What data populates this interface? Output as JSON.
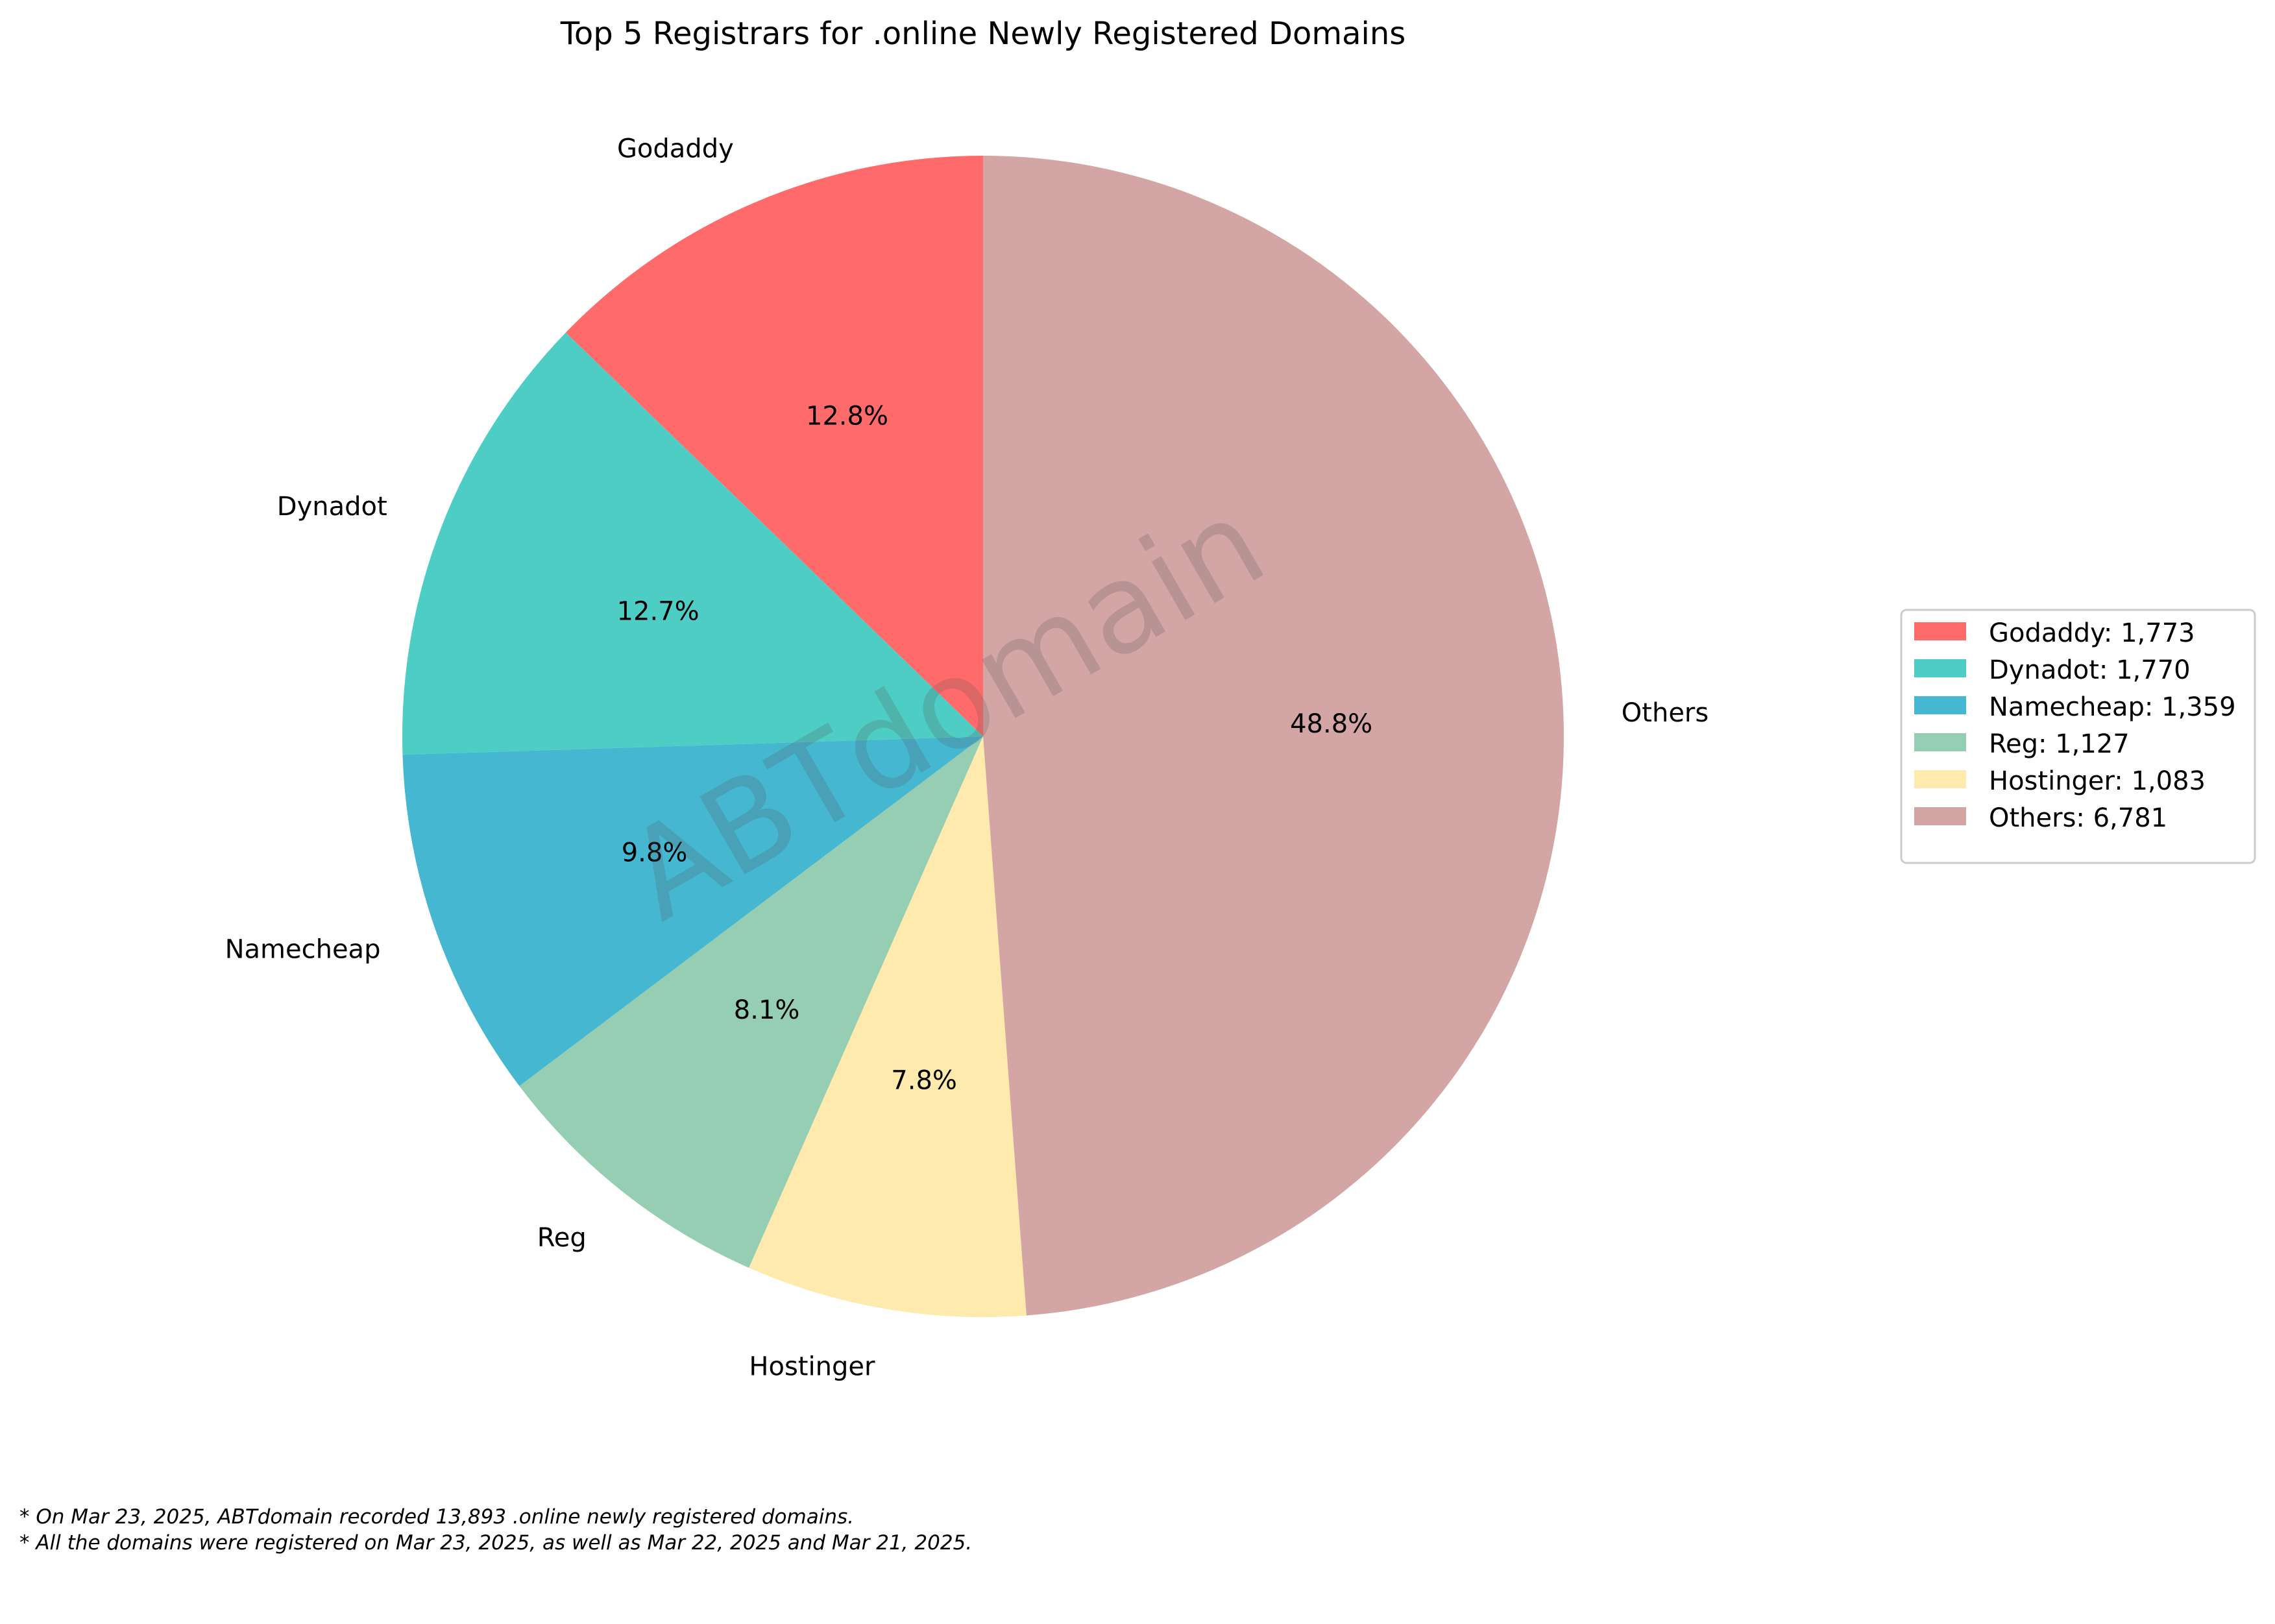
{
  "chart_data": {
    "type": "pie",
    "title": "Top 5 Registrars for .online Newly Registered Domains",
    "slices": [
      {
        "label": "Godaddy",
        "value": 1773,
        "percent_label": "12.8%",
        "legend": "Godaddy: 1,773",
        "color": "#FF6B6B"
      },
      {
        "label": "Dynadot",
        "value": 1770,
        "percent_label": "12.7%",
        "legend": "Dynadot: 1,770",
        "color": "#4ECDC4"
      },
      {
        "label": "Namecheap",
        "value": 1359,
        "percent_label": "9.8%",
        "legend": "Namecheap: 1,359",
        "color": "#45B7D1"
      },
      {
        "label": "Reg",
        "value": 1127,
        "percent_label": "8.1%",
        "legend": "Reg: 1,127",
        "color": "#96CEB4"
      },
      {
        "label": "Hostinger",
        "value": 1083,
        "percent_label": "7.8%",
        "legend": "Hostinger: 1,083",
        "color": "#FFEAAD"
      },
      {
        "label": "Others",
        "value": 6781,
        "percent_label": "48.8%",
        "legend": "Others: 6,781",
        "color": "#D4A5A5"
      }
    ],
    "start_angle_deg": 90,
    "direction": "counterclockwise",
    "legend_position": "right"
  },
  "watermark": "ABTdomain",
  "footnotes": [
    "* On Mar 23, 2025, ABTdomain recorded 13,893 .online newly registered domains.",
    "* All the domains were registered on Mar 23, 2025, as well as Mar 22, 2025 and Mar 21, 2025."
  ]
}
